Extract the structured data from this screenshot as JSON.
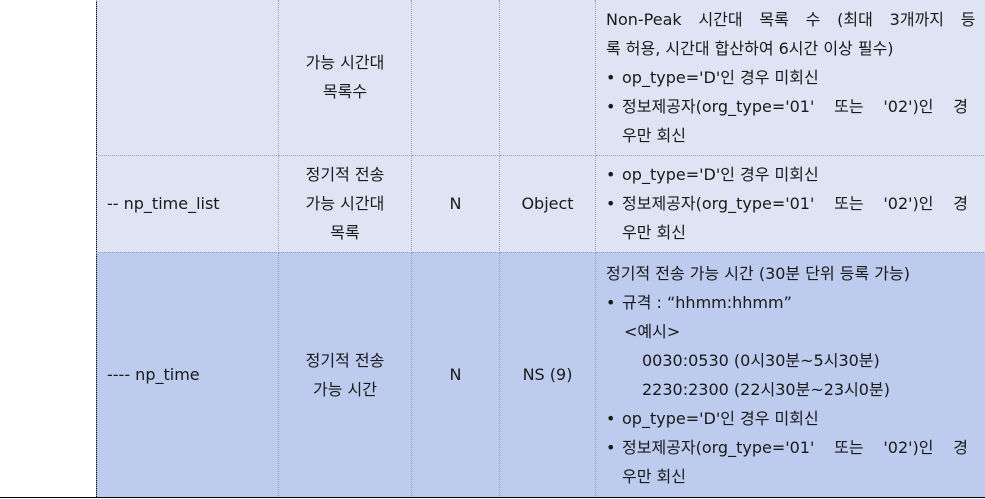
{
  "rows": [
    {
      "name": "",
      "desc": [
        "가능 시간대",
        "목록수"
      ],
      "required": "",
      "type": "",
      "note": {
        "intro": [
          "Non-Peak 시간대 목록 수 (최대 3개까지 등",
          "록 허용, 시간대 합산하여 6시간 이상 필수)"
        ],
        "bullets": [
          [
            "op_type='D'인 경우 미회신"
          ],
          [
            "정보제공자(org_type='01' 또는 '02')인 경",
            "우만 회신"
          ]
        ]
      }
    },
    {
      "name": "-- np_time_list",
      "desc": [
        "정기적 전송",
        "가능 시간대",
        "목록"
      ],
      "required": "N",
      "type": "Object",
      "note": {
        "bullets": [
          [
            "op_type='D'인 경우 미회신"
          ],
          [
            "정보제공자(org_type='01' 또는 '02')인 경",
            "우만 회신"
          ]
        ]
      }
    },
    {
      "name": "---- np_time",
      "desc": [
        "정기적 전송",
        "가능 시간"
      ],
      "required": "N",
      "type": "NS (9)",
      "note": {
        "intro": [
          "정기적 전송 가능 시간 (30분 단위 등록 가능)"
        ],
        "spec_label": "규격 : “hhmm:hhmm”",
        "example_label": "<예시>",
        "examples": [
          "0030:0530 (0시30분~5시30분)",
          "2230:2300 (22시30분~23시0분)"
        ],
        "bullets": [
          [
            "op_type='D'인 경우 미회신"
          ],
          [
            "정보제공자(org_type='01' 또는 '02')인 경",
            "우만 회신"
          ]
        ]
      }
    }
  ]
}
